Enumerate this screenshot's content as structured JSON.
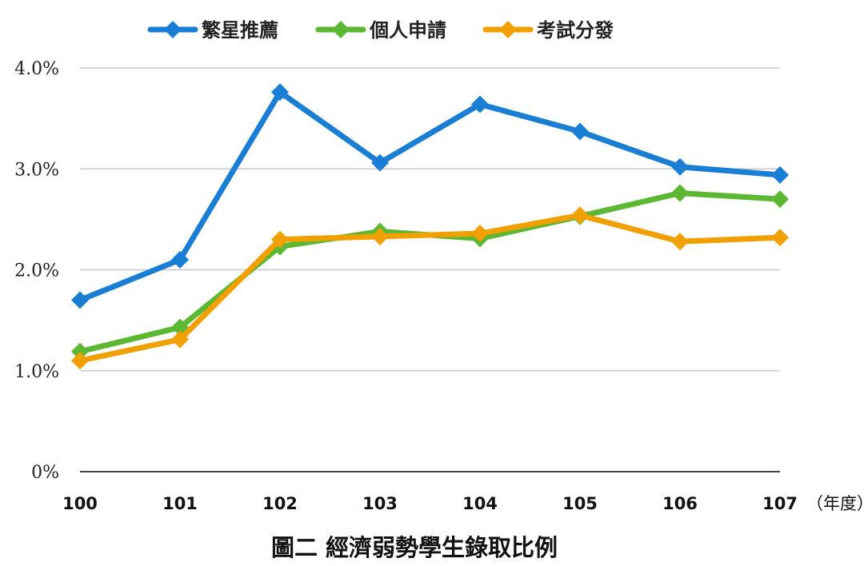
{
  "chart_data": {
    "type": "line",
    "categories": [
      "100",
      "101",
      "102",
      "103",
      "104",
      "105",
      "106",
      "107"
    ],
    "x_unit_label": "（年度）",
    "caption": "圖二  經濟弱勢學生錄取比例",
    "y_ticks": [
      "0%",
      "1.0%",
      "2.0%",
      "3.0%",
      "4.0%"
    ],
    "ylim": [
      0,
      4.0
    ],
    "y_unit": "%",
    "grid": true,
    "legend_position": "top",
    "series": [
      {
        "name": "繁星推薦",
        "color": "#1a7fd4",
        "values": [
          1.7,
          2.1,
          3.76,
          3.06,
          3.64,
          3.37,
          3.02,
          2.94
        ]
      },
      {
        "name": "個人申請",
        "color": "#5cb833",
        "values": [
          1.19,
          1.43,
          2.23,
          2.38,
          2.31,
          2.53,
          2.76,
          2.7
        ]
      },
      {
        "name": "考試分發",
        "color": "#f0a000",
        "values": [
          1.1,
          1.31,
          2.3,
          2.33,
          2.36,
          2.54,
          2.28,
          2.32
        ]
      }
    ]
  }
}
